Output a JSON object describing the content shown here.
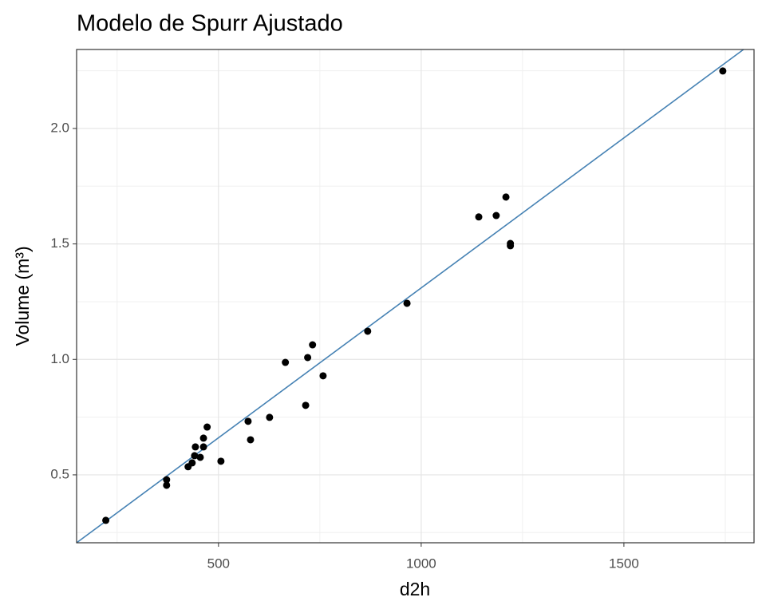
{
  "chart_data": {
    "type": "scatter",
    "title": "Modelo de Spurr Ajustado",
    "x_label": "d2h",
    "y_label": "Volume (m³)",
    "x": [
      222,
      372,
      372,
      425,
      435,
      441,
      443,
      455,
      463,
      463,
      472,
      506,
      573,
      579,
      626,
      665,
      715,
      720,
      732,
      758,
      868,
      965,
      1142,
      1185,
      1209,
      1220,
      1220,
      1744
    ],
    "values": [
      0.303,
      0.479,
      0.455,
      0.535,
      0.552,
      0.583,
      0.621,
      0.576,
      0.621,
      0.659,
      0.707,
      0.559,
      0.732,
      0.652,
      0.749,
      0.987,
      0.801,
      1.008,
      1.063,
      0.929,
      1.122,
      1.243,
      1.617,
      1.623,
      1.703,
      1.502,
      1.492,
      2.249
    ],
    "color": "#000000",
    "fit_line": {
      "x": [
        150,
        1795
      ],
      "values": [
        0.206,
        2.342
      ],
      "color": "#4682b4"
    },
    "xlim": [
      150,
      1821
    ],
    "ylim": [
      0.206,
      2.342
    ],
    "xticks": [
      500,
      1000,
      1500
    ],
    "yticks": [
      {
        "value": 0.5,
        "label": "0.5"
      },
      {
        "value": 1.0,
        "label": "1.0"
      },
      {
        "value": 1.5,
        "label": "1.5"
      },
      {
        "value": 2.0,
        "label": "2.0"
      }
    ],
    "xminor": [
      250,
      750,
      1250,
      1750
    ],
    "yminor": [
      0.25,
      0.75,
      1.25,
      1.75,
      2.25
    ],
    "grid": true
  }
}
